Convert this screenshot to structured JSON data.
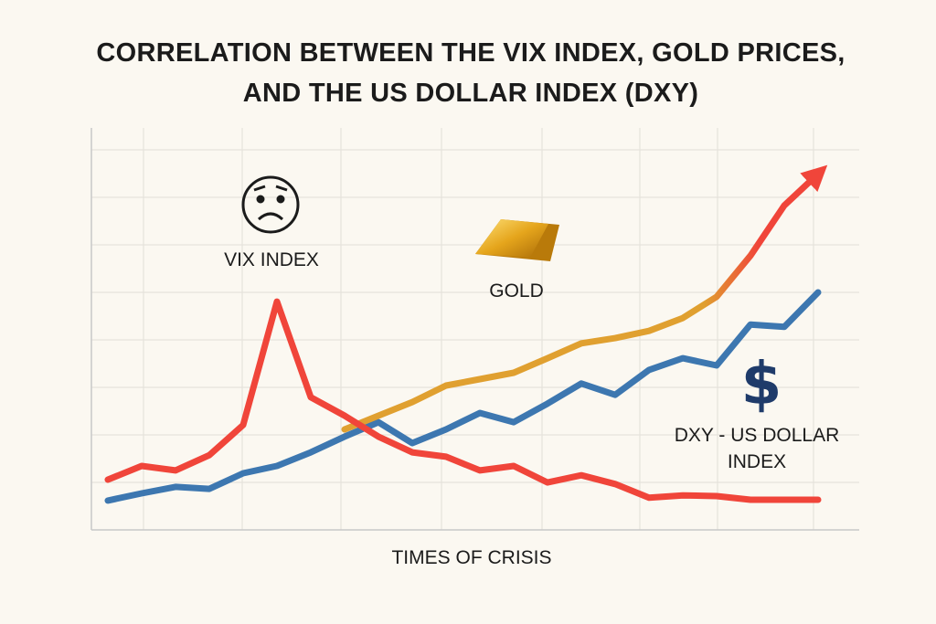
{
  "chart_data": {
    "type": "line",
    "title": "CORRELATION BETWEEN THE VIX INDEX, GOLD PRICES, AND THE US DOLLAR INDEX (DXY)",
    "x_label": "TIMES OF CRISIS",
    "categories": [
      null,
      null,
      null,
      null,
      null,
      null,
      null,
      null,
      null,
      null,
      null,
      null,
      null,
      null,
      null,
      null,
      null,
      null,
      null,
      null,
      null,
      null
    ],
    "ylim": [
      0,
      100
    ],
    "grid": true,
    "series": [
      {
        "name": "VIX INDEX",
        "color": "#f0453a",
        "values": [
          12.5,
          15.9,
          14.8,
          18.6,
          26.1,
          56.8,
          33,
          28.4,
          23.2,
          19.3,
          18.2,
          14.8,
          15.9,
          11.8,
          13.6,
          11.4,
          8,
          8.6,
          8.4,
          7.5,
          7.5,
          7.5
        ]
      },
      {
        "name": "GOLD",
        "color": "#e0a030",
        "values": [
          null,
          null,
          null,
          null,
          null,
          null,
          null,
          25,
          28.4,
          31.8,
          35.9,
          37.5,
          39.1,
          42.7,
          46.4,
          47.7,
          49.5,
          52.7,
          58,
          68.2,
          80.7,
          88.6
        ]
      },
      {
        "name": "DXY - US DOLLAR INDEX",
        "color": "#3d77b0",
        "values": [
          7.3,
          9.1,
          10.7,
          10.2,
          14.1,
          15.9,
          19.3,
          23.2,
          26.8,
          21.6,
          25,
          29.1,
          26.8,
          31.4,
          36.4,
          33.6,
          39.8,
          42.7,
          40.9,
          51.1,
          50.5,
          59.1
        ]
      }
    ]
  }
}
